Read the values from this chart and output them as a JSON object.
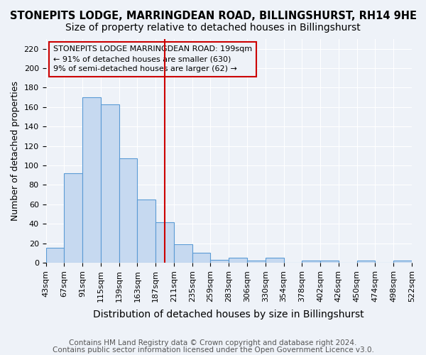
{
  "title": "STONEPITS LODGE, MARRINGDEAN ROAD, BILLINGSHURST, RH14 9HE",
  "subtitle": "Size of property relative to detached houses in Billingshurst",
  "xlabel": "Distribution of detached houses by size in Billingshurst",
  "ylabel": "Number of detached properties",
  "footnote1": "Contains HM Land Registry data © Crown copyright and database right 2024.",
  "footnote2": "Contains public sector information licensed under the Open Government Licence v3.0.",
  "bin_labels": [
    "43sqm",
    "67sqm",
    "91sqm",
    "115sqm",
    "139sqm",
    "163sqm",
    "187sqm",
    "211sqm",
    "235sqm",
    "259sqm",
    "283sqm",
    "306sqm",
    "330sqm",
    "354sqm",
    "378sqm",
    "402sqm",
    "426sqm",
    "450sqm",
    "474sqm",
    "498sqm",
    "522sqm"
  ],
  "bar_heights": [
    15,
    92,
    170,
    163,
    107,
    65,
    42,
    19,
    10,
    3,
    5,
    2,
    5,
    0,
    2,
    2,
    0,
    2,
    0,
    2
  ],
  "bar_color": "#c6d9f0",
  "bar_edge_color": "#5b9bd5",
  "bg_color": "#eef2f8",
  "grid_color": "#ffffff",
  "marker_line_color": "#cc0000",
  "annotation_text": "STONEPITS LODGE MARRINGDEAN ROAD: 199sqm\n← 91% of detached houses are smaller (630)\n9% of semi-detached houses are larger (62) →",
  "annotation_box_color": "#cc0000",
  "ylim": [
    0,
    230
  ],
  "yticks": [
    0,
    20,
    40,
    60,
    80,
    100,
    120,
    140,
    160,
    180,
    200,
    220
  ],
  "title_fontsize": 10.5,
  "subtitle_fontsize": 10,
  "xlabel_fontsize": 10,
  "ylabel_fontsize": 9,
  "tick_fontsize": 8,
  "annotation_fontsize": 8,
  "footnote_fontsize": 7.5
}
